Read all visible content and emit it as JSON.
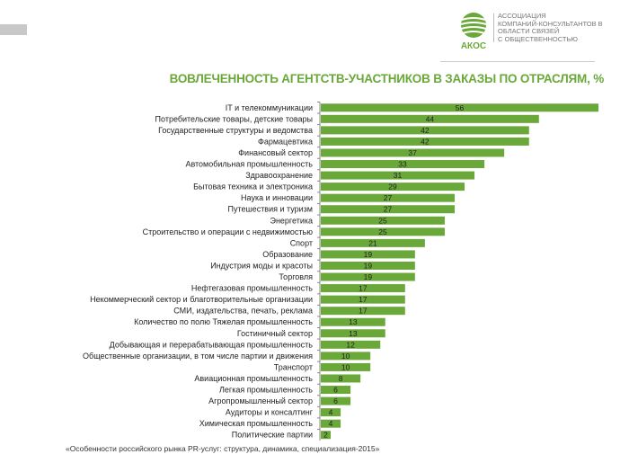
{
  "header": {
    "logo_name": "АКОС",
    "logo_text": [
      "АССОЦИАЦИЯ",
      "КОМПАНИЙ-КОНСУЛЬТАНТОВ В",
      "ОБЛАСТИ СВЯЗЕЙ",
      "С ОБЩЕСТВЕННОСТЬЮ"
    ]
  },
  "footer": "«Особенности российского рынка PR-услуг: структура, динамика, специализация-2015»",
  "colors": {
    "bar": "#6aa83a",
    "title": "#6aa83a"
  },
  "chart_data": {
    "type": "bar",
    "orientation": "horizontal",
    "title": "ВОВЛЕЧЕННОСТЬ АГЕНТСТВ-УЧАСТНИКОВ В ЗАКАЗЫ ПО ОТРАСЛЯМ, %",
    "categories": [
      "IT и телекоммуникации",
      "Потребительские товары, детские товары",
      "Государственные структуры и ведомства",
      "Фармацевтика",
      "Финансовый сектор",
      "Автомобильная промышленность",
      "Здравоохранение",
      "Бытовая техника и электроника",
      "Наука и инновации",
      "Путешествия и туризм",
      "Энергетика",
      "Строительство и операции с недвижимостью",
      "Спорт",
      "Образование",
      "Индустрия моды и красоты",
      "Торговля",
      "Нефтегазовая промышленность",
      "Некоммерческий сектор и благотворительные организации",
      "СМИ, издательства, печать, реклама",
      "Количество по полю Тяжелая промышленность",
      "Гостиничный сектор",
      "Добывающая и перерабатывающая промышленность",
      "Общественные организации, в том числе партии и движения",
      "Транспорт",
      "Авиационная промышленность",
      "Легкая промышленность",
      "Агропромышленный сектор",
      "Аудиторы и консалтинг",
      "Химическая промышленность",
      "Политические партии"
    ],
    "values": [
      56,
      44,
      42,
      42,
      37,
      33,
      31,
      29,
      27,
      27,
      25,
      25,
      21,
      19,
      19,
      19,
      17,
      17,
      17,
      13,
      13,
      12,
      10,
      10,
      8,
      6,
      6,
      4,
      4,
      2
    ],
    "xlim": [
      0,
      56
    ],
    "grid": false,
    "data_labels": true
  }
}
